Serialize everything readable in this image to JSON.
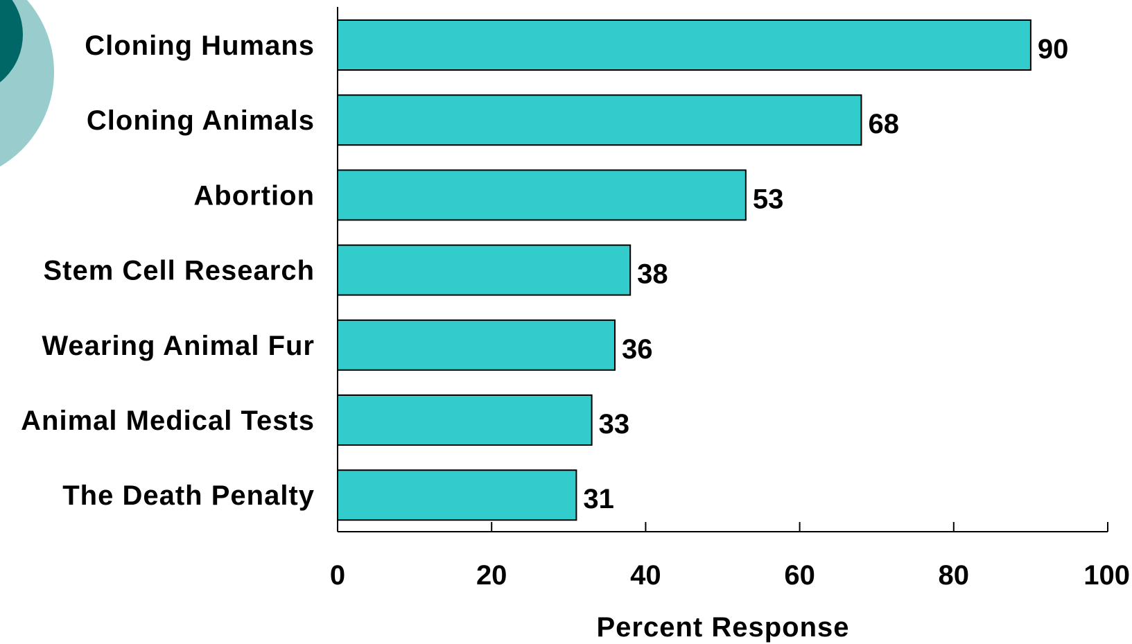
{
  "chart_data": {
    "type": "bar",
    "orientation": "horizontal",
    "categories": [
      "Cloning Humans",
      "Cloning Animals",
      "Abortion",
      "Stem Cell Research",
      "Wearing Animal Fur",
      "Animal Medical Tests",
      "The Death Penalty"
    ],
    "values": [
      90,
      68,
      53,
      38,
      36,
      33,
      31
    ],
    "xlabel": "Percent Response",
    "ylabel": "",
    "xlim": [
      0,
      100
    ],
    "xticks": [
      "0",
      "20",
      "40",
      "60",
      "80",
      "100"
    ],
    "grid": false,
    "legend": "none"
  },
  "colors": {
    "bar_fill": "#33CCCC",
    "bar_stroke": "#000000",
    "decor_dark": "#006666",
    "decor_light": "#99CCCC"
  }
}
